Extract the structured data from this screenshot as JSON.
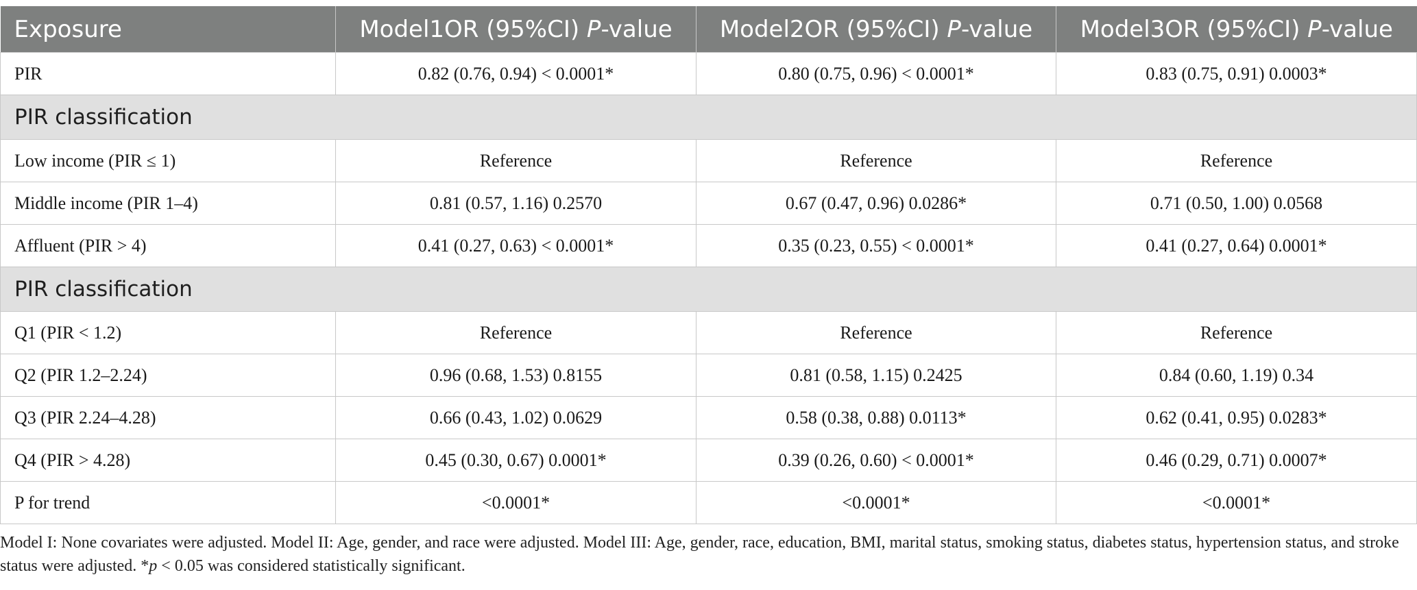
{
  "header": {
    "exposure": "Exposure",
    "models": [
      {
        "name": "Model1",
        "stat": "OR (95%CI)",
        "p": "P",
        "suffix": "-value"
      },
      {
        "name": "Model2",
        "stat": "OR (95%CI)",
        "p": "P",
        "suffix": "-value"
      },
      {
        "name": "Model3",
        "stat": "OR (95%CI)",
        "p": "P",
        "suffix": "-value"
      }
    ]
  },
  "rows": [
    {
      "type": "data",
      "label": "PIR",
      "values": [
        "0.82 (0.76, 0.94) < 0.0001*",
        "0.80 (0.75, 0.96) < 0.0001*",
        "0.83 (0.75, 0.91) 0.0003*"
      ]
    },
    {
      "type": "section",
      "label": "PIR classification"
    },
    {
      "type": "data",
      "label": "Low income (PIR ≤ 1)",
      "values": [
        "Reference",
        "Reference",
        "Reference"
      ]
    },
    {
      "type": "data",
      "label": "Middle income (PIR 1–4)",
      "values": [
        "0.81 (0.57, 1.16) 0.2570",
        "0.67 (0.47, 0.96) 0.0286*",
        "0.71 (0.50, 1.00) 0.0568"
      ]
    },
    {
      "type": "data",
      "label": "Affluent (PIR > 4)",
      "values": [
        "0.41 (0.27, 0.63) < 0.0001*",
        "0.35 (0.23, 0.55) < 0.0001*",
        "0.41 (0.27, 0.64) 0.0001*"
      ]
    },
    {
      "type": "section",
      "label": "PIR classification"
    },
    {
      "type": "data",
      "label": "Q1 (PIR < 1.2)",
      "values": [
        "Reference",
        "Reference",
        "Reference"
      ]
    },
    {
      "type": "data",
      "label": "Q2 (PIR 1.2–2.24)",
      "values": [
        "0.96 (0.68, 1.53) 0.8155",
        "0.81 (0.58, 1.15) 0.2425",
        "0.84 (0.60, 1.19) 0.34"
      ]
    },
    {
      "type": "data",
      "label": "Q3 (PIR 2.24–4.28)",
      "values": [
        "0.66 (0.43, 1.02) 0.0629",
        "0.58 (0.38, 0.88) 0.0113*",
        "0.62 (0.41, 0.95) 0.0283*"
      ]
    },
    {
      "type": "data",
      "label": "Q4 (PIR > 4.28)",
      "values": [
        "0.45 (0.30, 0.67) 0.0001*",
        "0.39 (0.26, 0.60) < 0.0001*",
        "0.46 (0.29, 0.71) 0.0007*"
      ]
    },
    {
      "type": "data",
      "label": "P for trend",
      "values": [
        "<0.0001*",
        "<0.0001*",
        "<0.0001*"
      ]
    }
  ],
  "footnote": {
    "text1": "Model I: None covariates were adjusted. Model II: Age, gender, and race were adjusted. Model III: Age, gender, race, education, BMI, marital status, smoking status, diabetes status, hypertension status, and stroke status were adjusted. *",
    "p_symbol": "p",
    "text2": " < 0.05 was considered statistically significant."
  },
  "colors": {
    "header_bg": "#7e807f",
    "header_text": "#ffffff",
    "section_bg": "#e0e0e0",
    "grid": "#c8c8c8"
  }
}
